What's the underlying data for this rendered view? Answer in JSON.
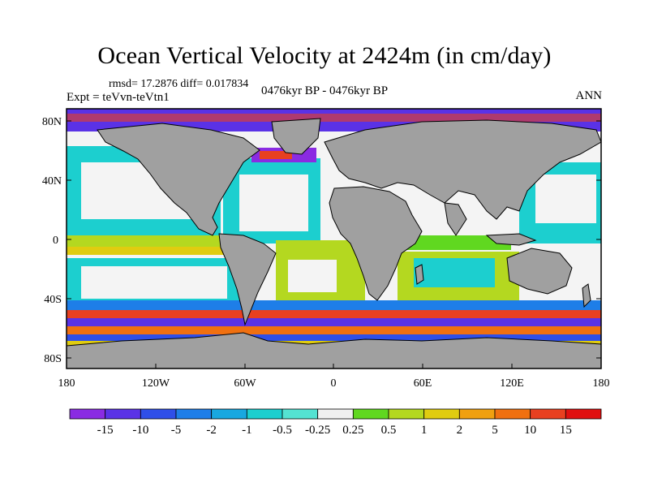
{
  "title": "Ocean Vertical Velocity at 2424m (in cm/day)",
  "stats": "rmsd= 17.2876 diff= 0.017834",
  "experiment": "Expt = teVvn-teVtn1",
  "period": "0476kyr BP - 0476kyr BP",
  "season": "ANN",
  "lat_labels": [
    "80N",
    "40N",
    "0",
    "40S",
    "80S"
  ],
  "lon_labels": [
    "180",
    "120W",
    "60W",
    "0",
    "60E",
    "120E",
    "180"
  ],
  "colorbar": {
    "labels": [
      "-15",
      "-10",
      "-5",
      "-2",
      "-1",
      "-0.5",
      "-0.25",
      "0.25",
      "0.5",
      "1",
      "2",
      "5",
      "10",
      "15"
    ],
    "colors": [
      "#8a2be2",
      "#5a32e6",
      "#2f4fe8",
      "#1e7ee8",
      "#18a8e0",
      "#1ccfcf",
      "#54e2d2",
      "#f0f0f0",
      "#60d820",
      "#b4d820",
      "#e0cc10",
      "#f0a010",
      "#f07010",
      "#e84020",
      "#e01010"
    ]
  },
  "land_color": "#a0a0a0"
}
